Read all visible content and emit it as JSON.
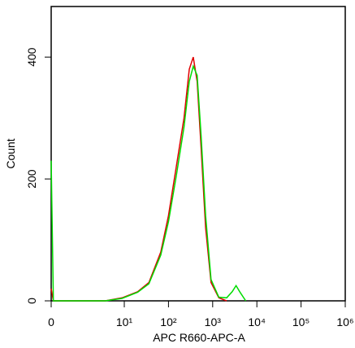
{
  "chart_data": {
    "type": "line",
    "xlabel": "APC R660-APC-A",
    "ylabel": "Count",
    "xlim": [
      0,
      1000000
    ],
    "ylim": [
      0,
      483
    ],
    "xticks": [
      0,
      {
        "value": 10,
        "label": "10¹"
      },
      {
        "value": 100,
        "label": "10²"
      },
      {
        "value": 1000,
        "label": "10³"
      },
      {
        "value": 10000,
        "label": "10⁴"
      },
      {
        "value": 100000,
        "label": "10⁵"
      },
      {
        "value": 1000000,
        "label": "10⁶"
      }
    ],
    "yticks": [
      0,
      200,
      400
    ],
    "series": [
      {
        "name": "red",
        "color": "#e00000",
        "x": [
          0,
          0.3,
          7.4,
          9.7,
          20,
          36,
          67,
          100,
          150,
          224,
          296,
          363,
          445,
          548,
          693,
          920,
          1380,
          2070
        ],
        "values": [
          20,
          0,
          0,
          5,
          15,
          30,
          80,
          140,
          220,
          300,
          380,
          400,
          360,
          250,
          120,
          30,
          5,
          0
        ]
      },
      {
        "name": "green",
        "color": "#00dd00",
        "x": [
          0,
          0.3,
          7.4,
          9.7,
          20,
          36,
          67,
          100,
          150,
          224,
          296,
          363,
          445,
          548,
          693,
          920,
          1380,
          2070,
          2760,
          3390,
          4100,
          5600
        ],
        "values": [
          230,
          0,
          0,
          4,
          14,
          28,
          75,
          130,
          205,
          285,
          360,
          385,
          370,
          270,
          140,
          35,
          6,
          5,
          15,
          25,
          15,
          0
        ]
      }
    ]
  }
}
